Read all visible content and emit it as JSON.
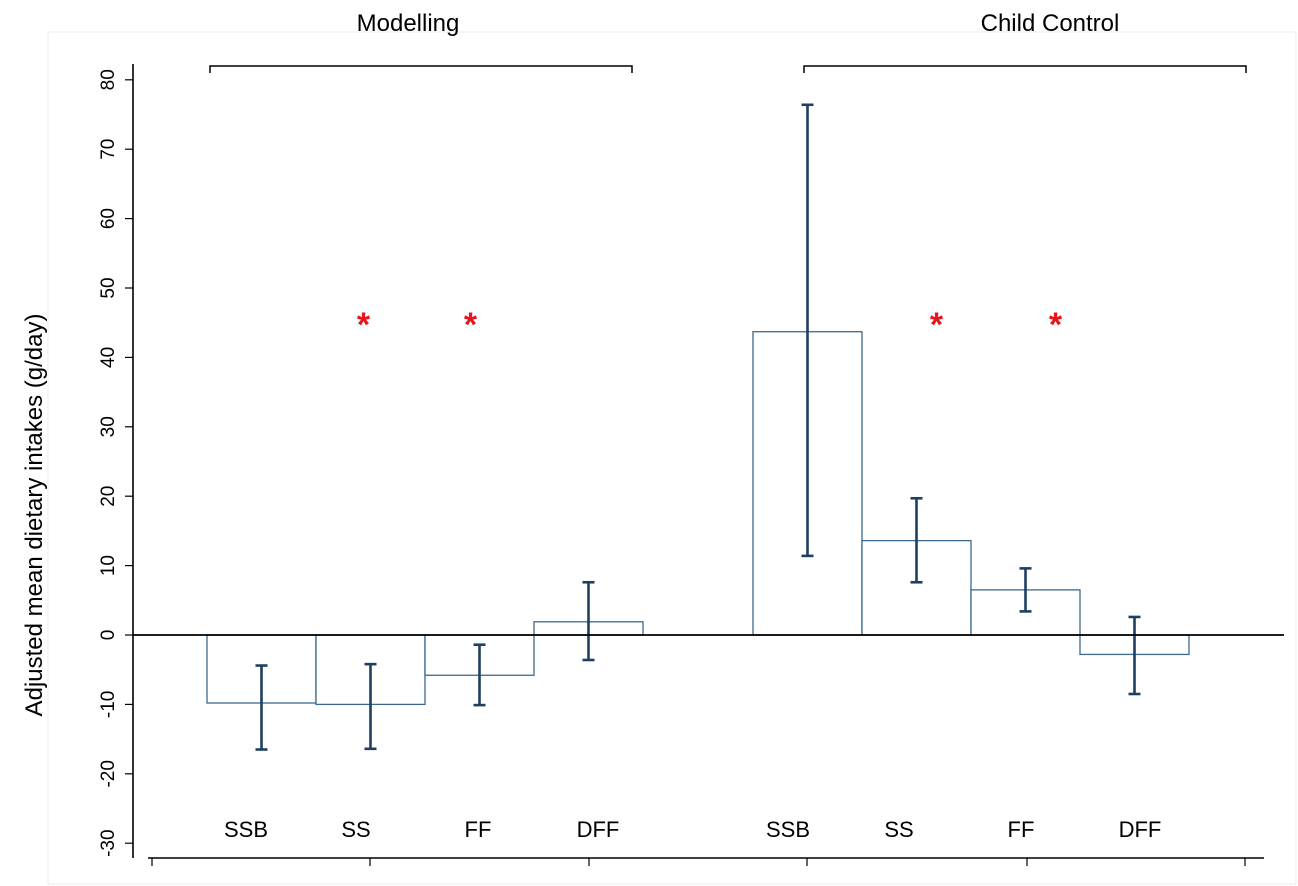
{
  "chart_data": {
    "type": "bar",
    "title": "",
    "xlabel": "",
    "ylabel": "Adjusted mean dietary intakes (g/day)",
    "ylim": [
      -30,
      80
    ],
    "yticks": [
      -30,
      -20,
      -10,
      0,
      10,
      20,
      30,
      40,
      50,
      60,
      70,
      80
    ],
    "ytick_labels": [
      "-30",
      "-20",
      "-10",
      "0",
      "10",
      "20",
      "30",
      "40",
      "50",
      "60",
      "70",
      "80"
    ],
    "grid": false,
    "groups": [
      {
        "name": "Modelling",
        "categories": [
          "SSB",
          "SS",
          "FF",
          "DFF"
        ],
        "values": [
          -9.8,
          -10.0,
          -5.8,
          1.9
        ],
        "ci_lower": [
          -16.5,
          -16.4,
          -10.1,
          -3.6
        ],
        "ci_upper": [
          -4.4,
          -4.2,
          -1.4,
          7.6
        ],
        "significant": [
          false,
          true,
          true,
          false
        ]
      },
      {
        "name": "Child Control",
        "categories": [
          "SSB",
          "SS",
          "FF",
          "DFF"
        ],
        "values": [
          43.7,
          13.6,
          6.5,
          -2.8
        ],
        "ci_lower": [
          11.4,
          7.6,
          3.4,
          -8.5
        ],
        "ci_upper": [
          76.4,
          19.7,
          9.6,
          2.6
        ],
        "significant": [
          false,
          true,
          true,
          false
        ]
      }
    ],
    "significance_marker": "*",
    "colors": {
      "bar_edge": "#3b6a8e",
      "error_bar": "#1f3f62",
      "significance": "#e8141c"
    }
  }
}
